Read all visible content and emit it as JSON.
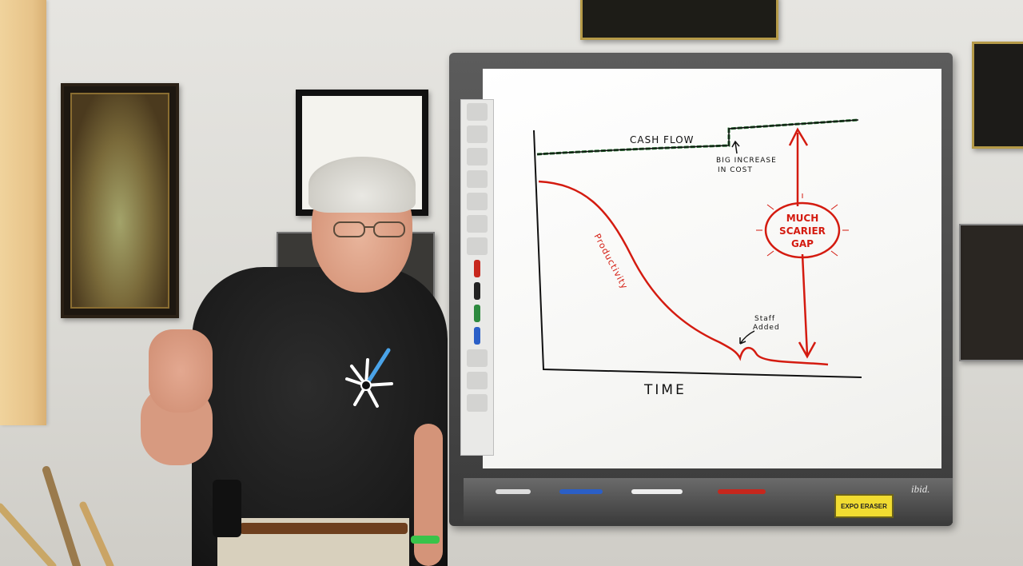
{
  "whiteboard": {
    "brand": "ibid.",
    "eraser_label": "EXPO ERASER",
    "graph": {
      "x_axis_label": "TIME",
      "cash_flow_label": "CASH FLOW",
      "cost_note_line1": "BIG INCREASE",
      "cost_note_line2": "IN COST",
      "productivity_label": "Productivity",
      "staff_note_line1": "Staff",
      "staff_note_line2": "Added",
      "gap_line1": "MUCH",
      "gap_line2": "SCARIER",
      "gap_line3": "GAP"
    }
  },
  "colors": {
    "ink_black": "#111111",
    "ink_red": "#d41b10",
    "cash_flow_ink": "#1f6b2a",
    "shirt": "#1a1a1a",
    "wall": "#e2e1dc"
  }
}
